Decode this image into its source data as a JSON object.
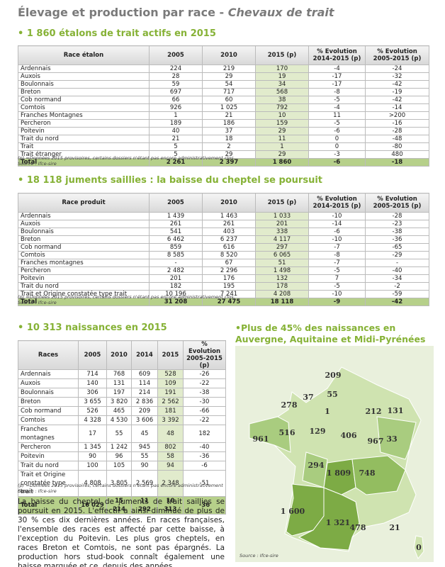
{
  "title": "Élevage et production par race - ",
  "title_sub": "Chevaux de trait",
  "section1": {
    "heading": "1 860 étalons de trait actifs en 2015",
    "table": {
      "header": [
        "Race étalon",
        "2005",
        "2010",
        "2015 (p)",
        "% Evolution 2014-2015 (p)",
        "% Evolution 2005-2015 (p)"
      ],
      "rows": [
        [
          "Ardennais",
          "224",
          "219",
          "170",
          "-4",
          "-24"
        ],
        [
          "Auxois",
          "28",
          "29",
          "19",
          "-17",
          "-32"
        ],
        [
          "Boulonnais",
          "59",
          "54",
          "34",
          "-17",
          "-42"
        ],
        [
          "Breton",
          "697",
          "717",
          "568",
          "-8",
          "-19"
        ],
        [
          "Cob normand",
          "66",
          "60",
          "38",
          "-5",
          "-42"
        ],
        [
          "Comtois",
          "926",
          "1 025",
          "792",
          "-4",
          "-14"
        ],
        [
          "Franches Montagnes",
          "1",
          "21",
          "10",
          "11",
          ">200"
        ],
        [
          "Percheron",
          "189",
          "186",
          "159",
          "-5",
          "-16"
        ],
        [
          "Poitevin",
          "40",
          "37",
          "29",
          "-6",
          "-28"
        ],
        [
          "Trait du nord",
          "21",
          "18",
          "11",
          "0",
          "-48"
        ],
        [
          "Trait",
          "5",
          "2",
          "1",
          "0",
          "-80"
        ],
        [
          "Trait étranger",
          "5",
          "29",
          "29",
          "-3",
          "480"
        ],
        [
          "Total",
          "2 261",
          "2 397",
          "1 860",
          "-6",
          "-18"
        ]
      ]
    },
    "note": "(p) =Données 2015 provisoires, certains dossiers n'étant pas encore administrativement clos.",
    "source": "Source : Ifce-sire"
  },
  "section2": {
    "heading": "18 118 juments saillies : la baisse du cheptel se poursuit",
    "table": {
      "header": [
        "Race produit",
        "2005",
        "2010",
        "2015 (p)",
        "% Evolution 2014-2015 (p)",
        "% Evolution 2005-2015 (p)"
      ],
      "rows": [
        [
          "Ardennais",
          "1 439",
          "1 463",
          "1 033",
          "-10",
          "-28"
        ],
        [
          "Auxois",
          "261",
          "261",
          "201",
          "-14",
          "-23"
        ],
        [
          "Boulonnais",
          "541",
          "403",
          "338",
          "-6",
          "-38"
        ],
        [
          "Breton",
          "6 462",
          "6 237",
          "4 117",
          "-10",
          "-36"
        ],
        [
          "Cob normand",
          "859",
          "616",
          "297",
          "-7",
          "-65"
        ],
        [
          "Comtois",
          "8 585",
          "8 520",
          "6 065",
          "-8",
          "-29"
        ],
        [
          "Franches montagnes",
          "-",
          "67",
          "51",
          "-7",
          "-"
        ],
        [
          "Percheron",
          "2 482",
          "2 296",
          "1 498",
          "-5",
          "-40"
        ],
        [
          "Poitevin",
          "201",
          "176",
          "132",
          "7",
          "-34"
        ],
        [
          "Trait du nord",
          "182",
          "195",
          "178",
          "-5",
          "-2"
        ],
        [
          "Trait et Origine constatée type trait",
          "10 196",
          "7 241",
          "4 208",
          "-10",
          "-59"
        ],
        [
          "Total",
          "31 208",
          "27 475",
          "18 118",
          "-9",
          "-42"
        ]
      ]
    },
    "note": "(p) =Données 2015 provisoires, certains dossiers n'étant pas encore administrativement clos.",
    "source": "Source : Ifce-sire"
  },
  "section3": {
    "heading": "10 313 naissances en 2015",
    "table": {
      "header": [
        "Races",
        "2005",
        "2010",
        "2014",
        "2015",
        "% Evolution 2005-2015 (p)"
      ],
      "rows": [
        [
          "Ardennais",
          "714",
          "768",
          "609",
          "528",
          "-26"
        ],
        [
          "Auxois",
          "140",
          "131",
          "114",
          "109",
          "-22"
        ],
        [
          "Boulonnais",
          "306",
          "197",
          "214",
          "191",
          "-38"
        ],
        [
          "Breton",
          "3 655",
          "3 820",
          "2 836",
          "2 562",
          "-30"
        ],
        [
          "Cob normand",
          "526",
          "465",
          "209",
          "181",
          "-66"
        ],
        [
          "Comtois",
          "4 328",
          "4 530",
          "3 606",
          "3 392",
          "-22"
        ],
        [
          "Franches montagnes",
          "17",
          "55",
          "45",
          "48",
          "182"
        ],
        [
          "Percheron",
          "1 345",
          "1 242",
          "945",
          "802",
          "-40"
        ],
        [
          "Poitevin",
          "90",
          "96",
          "55",
          "58",
          "-36"
        ],
        [
          "Trait du nord",
          "100",
          "105",
          "90",
          "94",
          "-6"
        ],
        [
          "Trait et Origine constatée type trait",
          "4 808",
          "3 805",
          "2 569",
          "2 348",
          "-51"
        ],
        [
          "Total",
          "16 029",
          "15 214",
          "11 292",
          "10 313",
          "-36"
        ]
      ]
    },
    "note": "(p) =Données 2015 provisoires, certains dossiers n'étant pas encore administrativement clos.",
    "source": "Source : Ifce-sire",
    "paragraph": "La baisse du cheptel de juments de trait saillies se poursuit en 2015. L'effectif a ainsi diminué de plus de 30 % ces dix dernières années. En races françaises, l'ensemble des races est affecté par cette baisse, à l'exception du Poitevin. Les plus gros cheptels, en races Breton et Comtois, ne sont pas épargnés. La production hors stud-book connaît également une baisse marquée et ce, depuis des années."
  },
  "map": {
    "heading": "Plus de 45% des naissances en Auvergne, Aquitaine et Midi-Pyrénées",
    "labels": [
      "209",
      "278",
      "37",
      "55",
      "212",
      "131",
      "33",
      "961",
      "1",
      "516",
      "129",
      "406",
      "967",
      "294",
      "1 809",
      "748",
      "1 600",
      "1 321",
      "478",
      "21",
      "0"
    ],
    "source": "Source : Ifce-sire"
  }
}
